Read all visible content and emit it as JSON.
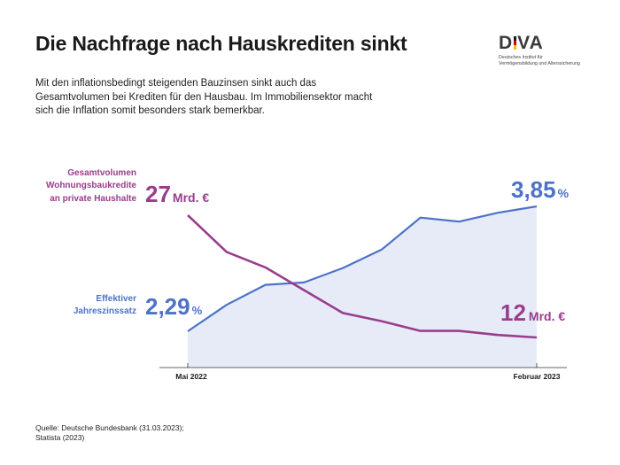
{
  "title": "Die Nachfrage nach Hauskrediten sinkt",
  "intro": "Mit den inflationsbedingt steigenden Bauzinsen sinkt auch das Gesamtvolumen bei Krediten für den Hausbau. Im Immobiliensektor macht sich die Inflation somit besonders stark bemerkbar.",
  "logo": {
    "mark_left": "D",
    "mark_right": "VA",
    "line1": "Deutsches Institut für",
    "line2": "Vermögensbildung und Alterssicherung"
  },
  "source": {
    "line1": "Quelle: Deutsche Bundesbank (31.03.2023);",
    "line2": "Statista (2023)"
  },
  "chart_data": {
    "type": "line",
    "title": "",
    "x_start_label": "Mai 2022",
    "x_end_label": "Februar 2023",
    "x": [
      "2022-05",
      "2022-06",
      "2022-07",
      "2022-08",
      "2022-09",
      "2022-10",
      "2022-11",
      "2022-12",
      "2023-01",
      "2023-02"
    ],
    "series": [
      {
        "name": "Gesamtvolumen Wohnungsbaukredite an private Haushalte",
        "unit": "Mrd. €",
        "color": "#9a3d8c",
        "values": [
          27,
          22.5,
          20.6,
          17.8,
          15.0,
          14.0,
          12.8,
          12.8,
          12.3,
          12
        ]
      },
      {
        "name": "Effektiver Jahreszinssatz",
        "unit": "%",
        "color": "#4d72c8",
        "fill": "#e6ebf7",
        "values": [
          2.29,
          2.62,
          2.87,
          2.9,
          3.08,
          3.31,
          3.71,
          3.66,
          3.77,
          3.85
        ]
      }
    ],
    "labels": {
      "volume_series_lines": [
        "Gesamtvolumen",
        "Wohnungsbaukredite",
        "an private Haushalte"
      ],
      "rate_series_lines": [
        "Effektiver",
        "Jahreszinssatz"
      ],
      "volume_start_value": "27",
      "volume_start_unit": "Mrd. €",
      "volume_end_value": "12",
      "volume_end_unit": "Mrd. €",
      "rate_start_value": "2,29",
      "rate_start_unit": "%",
      "rate_end_value": "3,85",
      "rate_end_unit": "%"
    },
    "grid": false,
    "legend": "direct labels"
  }
}
